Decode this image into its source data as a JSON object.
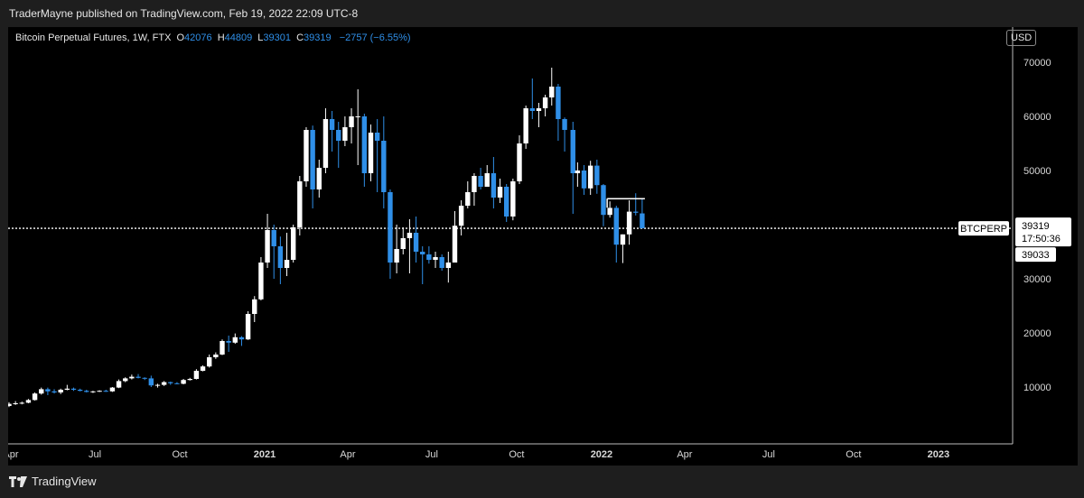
{
  "header": {
    "publisher": "TraderMayne published on TradingView.com, Feb 19, 2022 22:09 UTC-8"
  },
  "legend": {
    "symbol": "Bitcoin Perpetual Futures, 1W, FTX",
    "open_label": "O",
    "open": "42076",
    "high_label": "H",
    "high": "44809",
    "low_label": "L",
    "low": "39301",
    "close_label": "C",
    "close": "39319",
    "change": "−2757 (−6.55%)"
  },
  "currency": "USD",
  "footer": {
    "brand": "TradingView"
  },
  "price_tags": {
    "ticker": "BTCPERP",
    "last": "39319",
    "countdown": "17:50:36",
    "secondary": "39033"
  },
  "colors": {
    "up": "#ffffff",
    "down": "#2f8fe8",
    "background": "#000000",
    "accent": "#2f8fe8"
  },
  "chart_data": {
    "type": "candlestick",
    "interval": "1W",
    "ylim": [
      0,
      72000
    ],
    "yticks": [
      10000,
      20000,
      30000,
      40000,
      50000,
      60000,
      70000
    ],
    "xtick_labels": [
      {
        "label": "Apr",
        "date": "2020-04-01"
      },
      {
        "label": "Jul",
        "date": "2020-07-01"
      },
      {
        "label": "Oct",
        "date": "2020-10-01"
      },
      {
        "label": "2021",
        "date": "2021-01-01",
        "bold": true
      },
      {
        "label": "Apr",
        "date": "2021-04-01"
      },
      {
        "label": "Jul",
        "date": "2021-07-01"
      },
      {
        "label": "Oct",
        "date": "2021-10-01"
      },
      {
        "label": "2022",
        "date": "2022-01-01",
        "bold": true
      },
      {
        "label": "Apr",
        "date": "2022-04-01"
      },
      {
        "label": "Jul",
        "date": "2022-07-01"
      },
      {
        "label": "Oct",
        "date": "2022-10-01"
      },
      {
        "label": "2023",
        "date": "2023-01-01",
        "bold": true
      }
    ],
    "horizontal_line": 39319,
    "annotation_level": 44800,
    "candles": [
      [
        "2020-03-16",
        6100,
        6400,
        5900,
        6300
      ],
      [
        "2020-03-23",
        6300,
        6700,
        6000,
        6500
      ],
      [
        "2020-03-30",
        6500,
        7200,
        6300,
        6900
      ],
      [
        "2020-04-06",
        6900,
        7400,
        6700,
        7000
      ],
      [
        "2020-04-13",
        7000,
        7300,
        6800,
        7100
      ],
      [
        "2020-04-20",
        7100,
        7800,
        7000,
        7600
      ],
      [
        "2020-04-27",
        7600,
        9000,
        7500,
        8800
      ],
      [
        "2020-05-04",
        8800,
        9900,
        8600,
        9600
      ],
      [
        "2020-05-11",
        9600,
        9900,
        8500,
        9200
      ],
      [
        "2020-05-18",
        9200,
        9600,
        8800,
        9000
      ],
      [
        "2020-05-25",
        9000,
        9700,
        8700,
        9500
      ],
      [
        "2020-06-01",
        9500,
        10400,
        9400,
        9700
      ],
      [
        "2020-06-08",
        9700,
        9900,
        9300,
        9500
      ],
      [
        "2020-06-15",
        9500,
        9700,
        9200,
        9300
      ],
      [
        "2020-06-22",
        9300,
        9500,
        9000,
        9100
      ],
      [
        "2020-06-29",
        9100,
        9300,
        8900,
        9200
      ],
      [
        "2020-07-06",
        9200,
        9400,
        9100,
        9300
      ],
      [
        "2020-07-13",
        9300,
        9500,
        9100,
        9200
      ],
      [
        "2020-07-20",
        9200,
        10000,
        9100,
        9900
      ],
      [
        "2020-07-27",
        9900,
        11400,
        9800,
        11100
      ],
      [
        "2020-08-03",
        11100,
        11800,
        10900,
        11600
      ],
      [
        "2020-08-10",
        11600,
        12300,
        11400,
        11900
      ],
      [
        "2020-08-17",
        11900,
        12400,
        11600,
        11700
      ],
      [
        "2020-08-24",
        11700,
        11800,
        11300,
        11600
      ],
      [
        "2020-08-31",
        11600,
        12100,
        10000,
        10300
      ],
      [
        "2020-09-07",
        10300,
        10600,
        9900,
        10400
      ],
      [
        "2020-09-14",
        10400,
        11100,
        10200,
        10900
      ],
      [
        "2020-09-21",
        10900,
        11000,
        10400,
        10700
      ],
      [
        "2020-09-28",
        10700,
        10900,
        10500,
        10600
      ],
      [
        "2020-10-05",
        10600,
        11500,
        10500,
        11300
      ],
      [
        "2020-10-12",
        11300,
        11700,
        11200,
        11500
      ],
      [
        "2020-10-19",
        11500,
        13300,
        11400,
        13000
      ],
      [
        "2020-10-26",
        13000,
        14000,
        12900,
        13800
      ],
      [
        "2020-11-02",
        13800,
        16000,
        13600,
        15500
      ],
      [
        "2020-11-09",
        15500,
        16400,
        15200,
        16000
      ],
      [
        "2020-11-16",
        16000,
        18800,
        15900,
        18500
      ],
      [
        "2020-11-23",
        18500,
        19500,
        16500,
        18200
      ],
      [
        "2020-11-30",
        18200,
        19900,
        18000,
        19200
      ],
      [
        "2020-12-07",
        19200,
        19400,
        17600,
        18800
      ],
      [
        "2020-12-14",
        18800,
        24000,
        18700,
        23500
      ],
      [
        "2020-12-21",
        23500,
        26800,
        22000,
        26200
      ],
      [
        "2020-12-28",
        26200,
        34000,
        26000,
        33000
      ],
      [
        "2021-01-04",
        33000,
        42000,
        32000,
        39000
      ],
      [
        "2021-01-11",
        39000,
        40000,
        30000,
        36000
      ],
      [
        "2021-01-18",
        36000,
        37800,
        29000,
        32000
      ],
      [
        "2021-01-25",
        32000,
        38500,
        30500,
        33500
      ],
      [
        "2021-02-01",
        33500,
        40000,
        33000,
        39500
      ],
      [
        "2021-02-08",
        39500,
        49000,
        38000,
        48000
      ],
      [
        "2021-02-15",
        48000,
        58000,
        47000,
        57500
      ],
      [
        "2021-02-22",
        57500,
        58300,
        43000,
        46500
      ],
      [
        "2021-03-01",
        46500,
        52000,
        45000,
        50500
      ],
      [
        "2021-03-08",
        50500,
        61500,
        49500,
        59500
      ],
      [
        "2021-03-15",
        59500,
        61000,
        53500,
        57500
      ],
      [
        "2021-03-22",
        57500,
        59000,
        50500,
        55500
      ],
      [
        "2021-03-29",
        55500,
        60000,
        54500,
        58000
      ],
      [
        "2021-04-05",
        58000,
        61500,
        55000,
        60000
      ],
      [
        "2021-04-12",
        60000,
        65000,
        51000,
        60000
      ],
      [
        "2021-04-19",
        60000,
        60500,
        47000,
        49500
      ],
      [
        "2021-04-26",
        49500,
        58500,
        48000,
        57000
      ],
      [
        "2021-05-03",
        57000,
        59500,
        46000,
        55500
      ],
      [
        "2021-05-10",
        55500,
        60000,
        43000,
        46000
      ],
      [
        "2021-05-17",
        46000,
        46500,
        30000,
        33000
      ],
      [
        "2021-05-24",
        33000,
        40000,
        31000,
        35500
      ],
      [
        "2021-05-31",
        35500,
        39500,
        34500,
        37500
      ],
      [
        "2021-06-07",
        37500,
        41000,
        31000,
        38500
      ],
      [
        "2021-06-14",
        38500,
        41500,
        33000,
        35000
      ],
      [
        "2021-06-21",
        35000,
        36000,
        29000,
        34500
      ],
      [
        "2021-06-28",
        34500,
        36000,
        32800,
        33500
      ],
      [
        "2021-07-05",
        33500,
        35000,
        32000,
        34000
      ],
      [
        "2021-07-12",
        34000,
        34500,
        31500,
        32000
      ],
      [
        "2021-07-19",
        32000,
        35000,
        29300,
        33000
      ],
      [
        "2021-07-26",
        33000,
        42500,
        33500,
        39800
      ],
      [
        "2021-08-02",
        39800,
        44500,
        38000,
        43500
      ],
      [
        "2021-08-09",
        43500,
        48000,
        43000,
        46000
      ],
      [
        "2021-08-16",
        46000,
        49500,
        43500,
        49000
      ],
      [
        "2021-08-23",
        49000,
        50500,
        46500,
        47000
      ],
      [
        "2021-08-30",
        47000,
        51000,
        47000,
        49500
      ],
      [
        "2021-09-06",
        49500,
        52500,
        43000,
        45000
      ],
      [
        "2021-09-13",
        45000,
        48500,
        44000,
        47000
      ],
      [
        "2021-09-20",
        47000,
        47500,
        40500,
        41500
      ],
      [
        "2021-09-27",
        41500,
        48500,
        40800,
        48000
      ],
      [
        "2021-10-04",
        48000,
        56500,
        47500,
        55000
      ],
      [
        "2021-10-11",
        55000,
        62000,
        54000,
        61500
      ],
      [
        "2021-10-18",
        61500,
        67000,
        59500,
        61000
      ],
      [
        "2021-10-25",
        61000,
        62500,
        58000,
        61500
      ],
      [
        "2021-11-01",
        61500,
        64000,
        60000,
        63500
      ],
      [
        "2021-11-08",
        63500,
        69000,
        62000,
        65500
      ],
      [
        "2021-11-15",
        65500,
        66000,
        55500,
        59500
      ],
      [
        "2021-11-22",
        59500,
        59800,
        53500,
        57500
      ],
      [
        "2021-12-01",
        57500,
        59000,
        42000,
        49500
      ],
      [
        "2021-12-06",
        49500,
        51500,
        47000,
        50000
      ],
      [
        "2021-12-13",
        50000,
        51000,
        45500,
        46700
      ],
      [
        "2021-12-20",
        46700,
        51800,
        45500,
        50900
      ],
      [
        "2021-12-27",
        50900,
        52000,
        45700,
        47300
      ],
      [
        "2022-01-03",
        47300,
        47500,
        39700,
        41800
      ],
      [
        "2022-01-10",
        41800,
        44300,
        41300,
        43100
      ],
      [
        "2022-01-17",
        43100,
        43500,
        33000,
        36300
      ],
      [
        "2022-01-24",
        36300,
        38200,
        32900,
        38200
      ],
      [
        "2022-01-31",
        38200,
        44500,
        36300,
        42400
      ],
      [
        "2022-02-07",
        42400,
        45800,
        41700,
        42200
      ],
      [
        "2022-02-14",
        42076,
        44809,
        39301,
        39319
      ]
    ]
  }
}
